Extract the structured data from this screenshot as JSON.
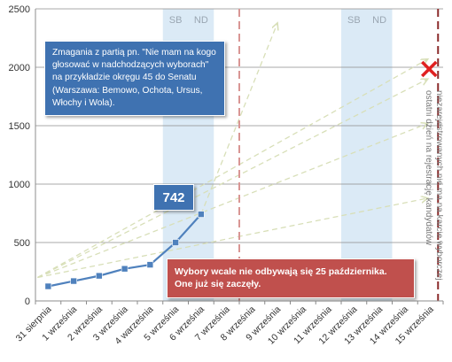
{
  "chart_data": {
    "type": "line",
    "categories": [
      "31 sierpnia",
      "1 września",
      "2 września",
      "3 września",
      "4 warześnia",
      "5 września",
      "6 września",
      "7 września",
      "8 września",
      "9 września",
      "10 września",
      "11 września",
      "12 września",
      "13 września",
      "14 września",
      "15 września"
    ],
    "series": [
      {
        "values": [
          125,
          170,
          215,
          275,
          310,
          500,
          742,
          null,
          null,
          null,
          null,
          null,
          null,
          null,
          null,
          null
        ]
      }
    ],
    "ylim": [
      0,
      2500
    ],
    "yticks": [
      "0",
      "500",
      "1000",
      "1500",
      "2000",
      "2500"
    ],
    "grid": true,
    "weekend_bands": [
      {
        "from": 5,
        "to": 6,
        "labels": [
          "SB",
          "ND"
        ]
      },
      {
        "from": 12,
        "to": 13,
        "labels": [
          "SB",
          "ND"
        ]
      }
    ],
    "deadline_markers": [
      7.5,
      15.3
    ],
    "projection_targets": [
      {
        "x": 9,
        "y": 2380
      },
      {
        "x": 14.9,
        "y": 2070
      },
      {
        "x": 14.9,
        "y": 1900
      },
      {
        "x": 14.9,
        "y": 1520
      },
      {
        "x": 14.9,
        "y": 880
      }
    ],
    "end_marker": {
      "x": 15.3,
      "y": 2000
    },
    "colors": {
      "line": "#4f81bd",
      "weekend": "#dbeaf6",
      "deadline": "#d99694",
      "end_deadline": "#8b2b2b",
      "projection": "#d8dfb8",
      "cross": "#e02020"
    }
  },
  "annotations": {
    "callout": "Zmagania z partią pn. \"Nie mam na kogo głosować w nadchodzących wyborach\" na przykładzie okręgu 45 do Senatu (Warszawa: Bemowo, Ochota, Ursus, Włochy i Wola).",
    "value_label": "742",
    "alert_line1": "Wybory wcale nie odbywają się 25 października.",
    "alert_line2": "One już się zaczęły.",
    "vertical_line1": "niezarejestrowanych nie ma na karcie wyborczej",
    "vertical_line2": "ostatni dzień na rejestrację kandydatów"
  }
}
